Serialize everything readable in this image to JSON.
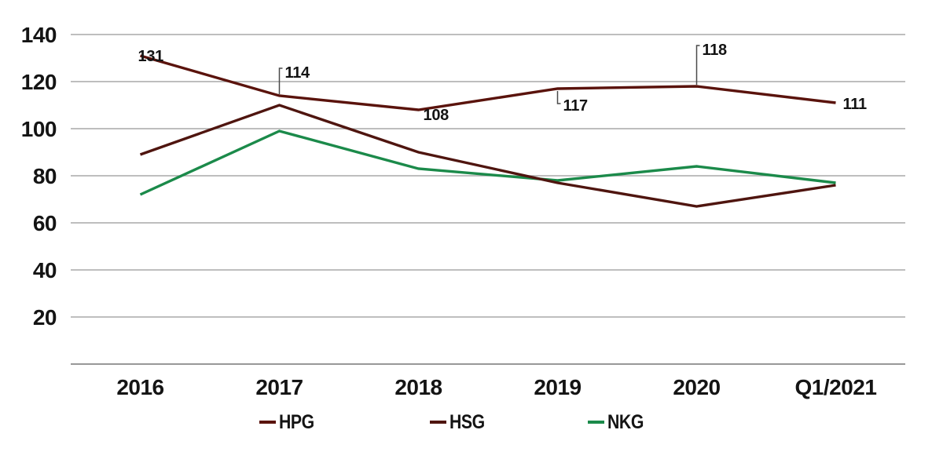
{
  "chart_data": {
    "type": "line",
    "title": "",
    "categories": [
      "2016",
      "2017",
      "2018",
      "2019",
      "2020",
      "Q1/2021"
    ],
    "series": [
      {
        "name": "HPG",
        "color": "#5a130c",
        "values": [
          131,
          114,
          108,
          117,
          118,
          111
        ]
      },
      {
        "name": "HSG",
        "color": "#4f150f",
        "values": [
          89,
          110,
          90,
          77,
          67,
          76
        ]
      },
      {
        "name": "NKG",
        "color": "#1b8a4a",
        "values": [
          72,
          99,
          83,
          78,
          84,
          77
        ]
      }
    ],
    "y_ticks": [
      20,
      40,
      60,
      80,
      100,
      120,
      140
    ],
    "ylim": [
      0,
      150
    ],
    "grid": true,
    "legend_position": "bottom",
    "annotations": {
      "series": "HPG",
      "labels": [
        {
          "index": 0,
          "text": "131",
          "placement": "overlap"
        },
        {
          "index": 1,
          "text": "114",
          "placement": "leader-up",
          "leader_len": 35
        },
        {
          "index": 2,
          "text": "108",
          "placement": "below-right"
        },
        {
          "index": 3,
          "text": "117",
          "placement": "leader-down",
          "leader_len": 16
        },
        {
          "index": 4,
          "text": "118",
          "placement": "leader-up",
          "leader_len": 52
        },
        {
          "index": 5,
          "text": "111",
          "placement": "right"
        }
      ]
    },
    "colors": {
      "gridline": "#a8a8a8",
      "axis": "#8a8a8a",
      "text": "#141414",
      "leader": "#4a4a4a",
      "background": "#ffffff"
    }
  }
}
